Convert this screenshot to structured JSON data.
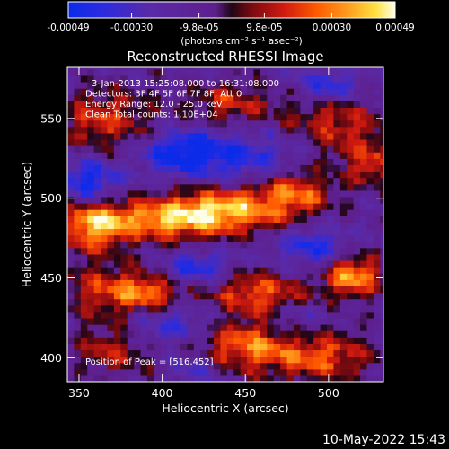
{
  "colorbar": {
    "tick_labels": [
      "-0.00049",
      "-0.00030",
      "-9.8e-05",
      "9.8e-05",
      "0.00030",
      "0.00049"
    ],
    "tick_values": [
      -0.00049,
      -0.0003,
      -9.8e-05,
      9.8e-05,
      0.0003,
      0.00049
    ],
    "range": [
      -0.00049,
      0.00049
    ],
    "unit_label": "(photons cm⁻² s⁻¹ asec⁻²)",
    "stops": [
      {
        "v": 0.0,
        "c": "#0a2be8"
      },
      {
        "v": 0.1,
        "c": "#2a2be0"
      },
      {
        "v": 0.25,
        "c": "#5a2aa8"
      },
      {
        "v": 0.45,
        "c": "#5e1f8c"
      },
      {
        "v": 0.5,
        "c": "#200616"
      },
      {
        "v": 0.56,
        "c": "#7a0a10"
      },
      {
        "v": 0.66,
        "c": "#d01a10"
      },
      {
        "v": 0.76,
        "c": "#ff5a00"
      },
      {
        "v": 0.86,
        "c": "#ffa020"
      },
      {
        "v": 0.94,
        "c": "#ffe040"
      },
      {
        "v": 1.0,
        "c": "#ffffe8"
      }
    ]
  },
  "chart_data": {
    "type": "heatmap",
    "title": "Reconstructed RHESSI Image",
    "xlabel": "Heliocentric X (arcsec)",
    "ylabel": "Heliocentric Y (arcsec)",
    "xlim": [
      343,
      533
    ],
    "ylim": [
      385,
      582
    ],
    "x_ticks": [
      350,
      400,
      450,
      500
    ],
    "y_ticks": [
      400,
      450,
      500,
      550
    ],
    "annotations": [
      "3-Jan-2013 15:25:08.000 to 16:31:08.000",
      "Detectors: 3F 4F 5F 6F 7F 8F, Att 0",
      "Energy Range: 12.0 - 25.0 keV",
      "Clean     Total counts: 1.10E+04"
    ],
    "peak_label": "Position of Peak = [516,452]",
    "peak_position": [
      516,
      452
    ],
    "pixel_size_arcsec": 4,
    "sources": [
      {
        "x": 400,
        "y": 487,
        "sx": 30,
        "sy": 10,
        "a": 0.95
      },
      {
        "x": 357,
        "y": 483,
        "sx": 14,
        "sy": 12,
        "a": 0.85
      },
      {
        "x": 440,
        "y": 494,
        "sx": 24,
        "sy": 10,
        "a": 0.85
      },
      {
        "x": 480,
        "y": 505,
        "sx": 16,
        "sy": 12,
        "a": 0.8
      },
      {
        "x": 515,
        "y": 452,
        "sx": 12,
        "sy": 9,
        "a": 1.0
      },
      {
        "x": 460,
        "y": 440,
        "sx": 24,
        "sy": 10,
        "a": 0.78
      },
      {
        "x": 370,
        "y": 442,
        "sx": 22,
        "sy": 12,
        "a": 0.7
      },
      {
        "x": 450,
        "y": 407,
        "sx": 28,
        "sy": 12,
        "a": 0.85
      },
      {
        "x": 500,
        "y": 400,
        "sx": 20,
        "sy": 12,
        "a": 0.6
      },
      {
        "x": 370,
        "y": 405,
        "sx": 18,
        "sy": 12,
        "a": 0.55
      },
      {
        "x": 365,
        "y": 550,
        "sx": 22,
        "sy": 14,
        "a": 0.65
      },
      {
        "x": 505,
        "y": 545,
        "sx": 22,
        "sy": 16,
        "a": 0.65
      },
      {
        "x": 440,
        "y": 560,
        "sx": 20,
        "sy": 10,
        "a": 0.55
      },
      {
        "x": 525,
        "y": 520,
        "sx": 10,
        "sy": 10,
        "a": 0.6
      },
      {
        "x": 395,
        "y": 440,
        "sx": 12,
        "sy": 8,
        "a": 0.55
      },
      {
        "x": 420,
        "y": 457,
        "sx": 14,
        "sy": 8,
        "a": -0.6
      },
      {
        "x": 355,
        "y": 510,
        "sx": 14,
        "sy": 10,
        "a": -0.7
      },
      {
        "x": 455,
        "y": 525,
        "sx": 30,
        "sy": 12,
        "a": -0.55
      },
      {
        "x": 410,
        "y": 530,
        "sx": 16,
        "sy": 10,
        "a": -0.65
      },
      {
        "x": 405,
        "y": 420,
        "sx": 20,
        "sy": 10,
        "a": -0.6
      },
      {
        "x": 490,
        "y": 470,
        "sx": 14,
        "sy": 10,
        "a": -0.55
      },
      {
        "x": 480,
        "y": 425,
        "sx": 12,
        "sy": 10,
        "a": -0.45
      },
      {
        "x": 420,
        "y": 395,
        "sx": 12,
        "sy": 8,
        "a": -0.5
      },
      {
        "x": 500,
        "y": 570,
        "sx": 14,
        "sy": 8,
        "a": -0.6
      }
    ]
  },
  "footer": {
    "timestamp": "10-May-2022 15:43"
  }
}
